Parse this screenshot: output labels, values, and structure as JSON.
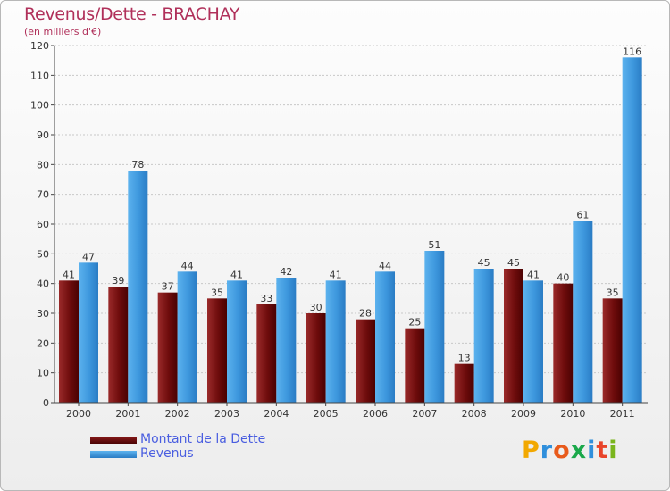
{
  "header": {
    "title": "Revenus/Dette - BRACHAY",
    "subtitle": "(en milliers d'€)"
  },
  "brand": {
    "letters": [
      "P",
      "r",
      "o",
      "x",
      "i",
      "t",
      "i"
    ],
    "letter_colors": [
      "#f2a800",
      "#2f8fdc",
      "#e85a1b",
      "#1aa84a",
      "#2f8fdc",
      "#e8442a",
      "#7ab51d"
    ]
  },
  "colors": {
    "dette": "#7a1010",
    "revenus": "#3d97dd",
    "label": "#333333",
    "axis": "#444444",
    "grid": "#c8c8c8"
  },
  "chart_data": {
    "type": "bar",
    "categories": [
      "2000",
      "2001",
      "2002",
      "2003",
      "2004",
      "2005",
      "2006",
      "2007",
      "2008",
      "2009",
      "2010",
      "2011"
    ],
    "series": [
      {
        "name": "Montant de la Dette",
        "values": [
          41,
          39,
          37,
          35,
          33,
          30,
          28,
          25,
          13,
          45,
          40,
          35
        ]
      },
      {
        "name": "Revenus",
        "values": [
          47,
          78,
          44,
          41,
          42,
          41,
          44,
          51,
          45,
          41,
          61,
          116
        ]
      }
    ],
    "yticks": [
      "0",
      "10",
      "20",
      "30",
      "40",
      "50",
      "60",
      "70",
      "80",
      "90",
      "100",
      "110",
      "120"
    ],
    "ylim": [
      0,
      120
    ],
    "grid": true,
    "legend": "bottom-left"
  }
}
